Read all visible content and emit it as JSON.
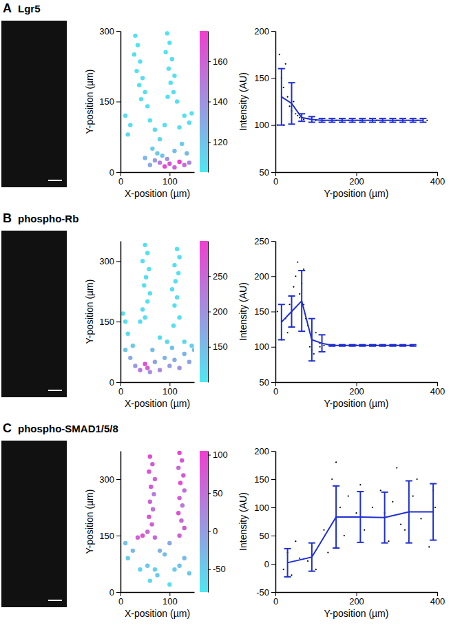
{
  "chart_data": [
    {
      "type": "scatter",
      "panel": "A",
      "title": "Lgr5",
      "x_label": "X-position (µm)",
      "y_label": "Y-position (µm)",
      "xlim": [
        0,
        150
      ],
      "xticks": [
        0,
        100
      ],
      "ylim": [
        0,
        300
      ],
      "yticks": [
        0,
        150,
        300
      ],
      "x": [
        30,
        35,
        28,
        40,
        33,
        45,
        38,
        50,
        42,
        55,
        95,
        100,
        92,
        105,
        98,
        110,
        102,
        108,
        115,
        96,
        10,
        20,
        15,
        60,
        70,
        80,
        90,
        120,
        130,
        140,
        145,
        65,
        75,
        85,
        110,
        125,
        135,
        80,
        90,
        100,
        110,
        120,
        130,
        95,
        70,
        140,
        60,
        50
      ],
      "y": [
        290,
        270,
        250,
        235,
        215,
        200,
        185,
        170,
        155,
        140,
        295,
        275,
        255,
        240,
        220,
        205,
        190,
        170,
        150,
        160,
        120,
        100,
        80,
        110,
        90,
        70,
        100,
        95,
        120,
        105,
        125,
        50,
        40,
        35,
        45,
        60,
        40,
        20,
        12,
        18,
        10,
        22,
        15,
        28,
        25,
        20,
        15,
        30
      ],
      "intensity": [
        108,
        107,
        109,
        108,
        107,
        110,
        108,
        109,
        107,
        108,
        107,
        108,
        107,
        109,
        108,
        107,
        108,
        109,
        108,
        107,
        110,
        109,
        111,
        108,
        110,
        112,
        109,
        110,
        108,
        109,
        108,
        115,
        118,
        120,
        122,
        116,
        125,
        150,
        170,
        165,
        160,
        175,
        155,
        140,
        135,
        145,
        130,
        125
      ],
      "colorbar": {
        "range": [
          105,
          175
        ],
        "ticks": [
          120,
          140,
          160
        ]
      }
    },
    {
      "type": "line",
      "x_label": "Y-position (µm)",
      "y_label": "Intensity (AU)",
      "color": "#1f2fd0",
      "xlim": [
        0,
        400
      ],
      "xticks": [
        0,
        200,
        400
      ],
      "ylim": [
        50,
        200
      ],
      "yticks": [
        50,
        100,
        150,
        200
      ],
      "x": [
        15,
        40,
        65,
        90,
        115,
        140,
        165,
        190,
        215,
        240,
        265,
        290,
        315,
        340,
        365
      ],
      "values": [
        130,
        123,
        108,
        106,
        105,
        105,
        105,
        105,
        105,
        105,
        105,
        105,
        105,
        105,
        105
      ],
      "errors": [
        30,
        22,
        4,
        3,
        2,
        2,
        2,
        2,
        2,
        2,
        2,
        2,
        2,
        2,
        2
      ],
      "points": {
        "x": [
          10,
          15,
          20,
          25,
          30,
          35,
          40,
          45,
          50,
          55,
          60,
          70,
          80,
          100,
          120,
          150,
          180,
          210,
          250,
          300,
          350,
          375,
          5,
          20
        ],
        "y": [
          175,
          150,
          140,
          165,
          130,
          120,
          115,
          125,
          112,
          110,
          108,
          106,
          107,
          105,
          105,
          105,
          105,
          105,
          105,
          105,
          105,
          105,
          100,
          100
        ]
      }
    },
    {
      "type": "scatter",
      "panel": "B",
      "title": "phospho-Rb",
      "x_label": "X-position (µm)",
      "y_label": "Y-position (µm)",
      "xlim": [
        0,
        150
      ],
      "xticks": [
        0,
        100
      ],
      "ylim": [
        0,
        350
      ],
      "yticks": [
        0,
        150,
        300
      ],
      "x": [
        50,
        55,
        45,
        58,
        52,
        48,
        60,
        55,
        45,
        50,
        40,
        115,
        120,
        110,
        118,
        112,
        105,
        115,
        110,
        120,
        108,
        5,
        10,
        15,
        80,
        95,
        130,
        145,
        10,
        20,
        30,
        40,
        50,
        55,
        60,
        70,
        80,
        90,
        100,
        110,
        120,
        130,
        140,
        150,
        25,
        65,
        105
      ],
      "y": [
        340,
        320,
        300,
        280,
        260,
        240,
        220,
        200,
        180,
        160,
        150,
        330,
        310,
        290,
        270,
        250,
        230,
        210,
        190,
        160,
        140,
        170,
        150,
        120,
        110,
        100,
        100,
        90,
        80,
        60,
        40,
        30,
        45,
        35,
        25,
        50,
        30,
        60,
        40,
        55,
        35,
        70,
        50,
        80,
        90,
        80,
        85
      ],
      "intensity": [
        110,
        108,
        112,
        109,
        110,
        108,
        111,
        109,
        110,
        112,
        115,
        108,
        110,
        109,
        108,
        111,
        109,
        110,
        108,
        112,
        111,
        110,
        108,
        112,
        115,
        118,
        120,
        125,
        140,
        170,
        190,
        230,
        280,
        260,
        200,
        180,
        210,
        160,
        190,
        170,
        200,
        160,
        180,
        150,
        135,
        150,
        145
      ],
      "colorbar": {
        "range": [
          100,
          300
        ],
        "ticks": [
          150,
          200,
          250
        ]
      }
    },
    {
      "type": "line",
      "x_label": "Y-position (µm)",
      "y_label": "Intensity (AU)",
      "color": "#1f2fd0",
      "xlim": [
        0,
        400
      ],
      "xticks": [
        0,
        200,
        400
      ],
      "ylim": [
        50,
        250
      ],
      "yticks": [
        50,
        100,
        150,
        200,
        250
      ],
      "x": [
        15,
        40,
        65,
        90,
        115,
        140,
        165,
        190,
        215,
        240,
        265,
        290,
        315,
        340
      ],
      "values": [
        135,
        150,
        165,
        110,
        105,
        102,
        102,
        102,
        102,
        102,
        102,
        102,
        102,
        102
      ],
      "errors": [
        25,
        22,
        43,
        30,
        12,
        1,
        1,
        1,
        1,
        1,
        1,
        1,
        1,
        1
      ],
      "points": {
        "x": [
          15,
          25,
          35,
          45,
          50,
          55,
          60,
          65,
          70,
          75,
          80,
          85,
          90,
          95,
          100,
          110,
          120,
          140,
          200,
          250,
          300,
          340,
          5,
          30,
          70,
          90,
          110
        ],
        "y": [
          110,
          140,
          160,
          185,
          200,
          220,
          175,
          190,
          160,
          140,
          130,
          100,
          95,
          90,
          120,
          105,
          102,
          102,
          102,
          102,
          102,
          102,
          150,
          120,
          210,
          80,
          100
        ]
      }
    },
    {
      "type": "scatter",
      "panel": "C",
      "title": "phospho-SMAD1/5/8",
      "x_label": "X-position (µm)",
      "y_label": "Y-position (µm)",
      "xlim": [
        0,
        150
      ],
      "xticks": [
        0,
        100
      ],
      "ylim": [
        0,
        375
      ],
      "yticks": [
        0,
        150,
        300
      ],
      "x": [
        60,
        65,
        58,
        70,
        62,
        68,
        60,
        66,
        58,
        64,
        55,
        45,
        35,
        70,
        120,
        125,
        118,
        128,
        122,
        130,
        120,
        126,
        118,
        124,
        130,
        120,
        10,
        25,
        15,
        40,
        55,
        70,
        80,
        90,
        100,
        110,
        120,
        130,
        60,
        75,
        100,
        140
      ],
      "y": [
        360,
        340,
        320,
        300,
        280,
        260,
        240,
        220,
        200,
        180,
        160,
        150,
        145,
        145,
        370,
        350,
        330,
        310,
        290,
        270,
        250,
        230,
        210,
        190,
        170,
        150,
        130,
        110,
        90,
        60,
        70,
        60,
        110,
        100,
        130,
        60,
        70,
        90,
        30,
        45,
        20,
        50
      ],
      "intensity": [
        90,
        70,
        85,
        60,
        75,
        40,
        65,
        50,
        80,
        70,
        60,
        85,
        70,
        55,
        95,
        80,
        60,
        75,
        90,
        50,
        70,
        40,
        85,
        60,
        75,
        65,
        -40,
        -30,
        -50,
        -60,
        -45,
        -55,
        -20,
        -35,
        -10,
        -50,
        -40,
        -30,
        -65,
        -50,
        -70,
        -45
      ],
      "colorbar": {
        "range": [
          -80,
          105
        ],
        "ticks": [
          -50,
          0,
          50,
          100
        ]
      }
    },
    {
      "type": "line",
      "x_label": "Y-position (µm)",
      "y_label": "Intensity (AU)",
      "color": "#1f2fd0",
      "xlim": [
        0,
        400
      ],
      "xticks": [
        0,
        200,
        400
      ],
      "ylim": [
        -50,
        200
      ],
      "yticks": [
        -50,
        0,
        50,
        100,
        150,
        200
      ],
      "x": [
        30,
        90,
        150,
        210,
        270,
        330,
        390
      ],
      "values": [
        2,
        12,
        83,
        83,
        82,
        92,
        92
      ],
      "errors": [
        25,
        25,
        55,
        45,
        45,
        55,
        50
      ],
      "points": {
        "x": [
          30,
          40,
          50,
          60,
          80,
          90,
          100,
          120,
          140,
          150,
          160,
          170,
          180,
          200,
          210,
          220,
          240,
          260,
          280,
          290,
          300,
          320,
          340,
          350,
          360,
          380,
          390,
          395,
          20,
          130,
          270,
          310
        ],
        "y": [
          20,
          -20,
          40,
          10,
          5,
          30,
          -10,
          60,
          150,
          180,
          100,
          50,
          120,
          90,
          140,
          60,
          100,
          130,
          40,
          110,
          170,
          60,
          120,
          150,
          80,
          30,
          130,
          100,
          -10,
          20,
          90,
          70
        ]
      }
    }
  ]
}
